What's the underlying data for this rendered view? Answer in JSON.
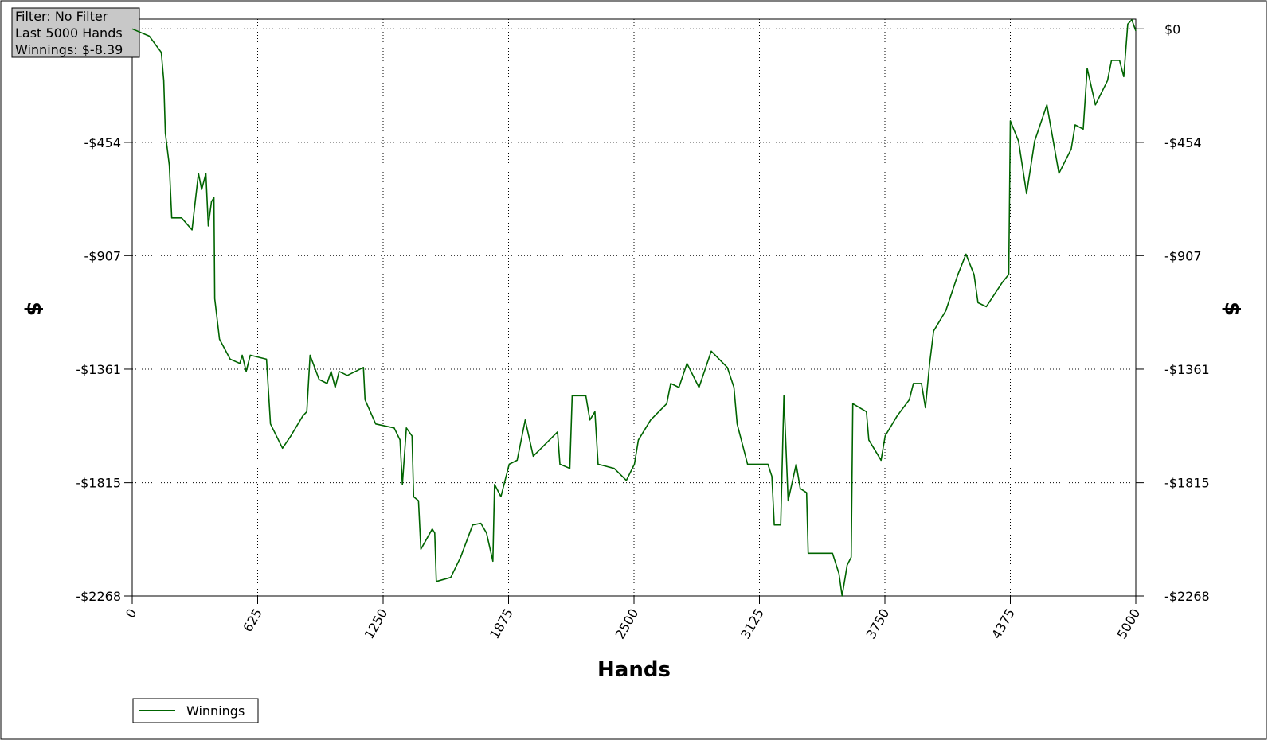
{
  "chart_data": {
    "type": "line",
    "info": [
      "Filter: No Filter",
      "Last  5000 Hands",
      "Winnings: $-8.39"
    ],
    "x_label": "Hands",
    "y_label": "$",
    "x": [
      0,
      85,
      145,
      157,
      165,
      185,
      197,
      246,
      298,
      314,
      330,
      346,
      367,
      379,
      395,
      407,
      411,
      435,
      488,
      536,
      548,
      568,
      588,
      669,
      689,
      749,
      790,
      850,
      870,
      886,
      931,
      971,
      991,
      1011,
      1031,
      1072,
      1152,
      1160,
      1213,
      1305,
      1334,
      1346,
      1366,
      1394,
      1402,
      1426,
      1438,
      1495,
      1507,
      1515,
      1587,
      1636,
      1696,
      1737,
      1765,
      1797,
      1805,
      1837,
      1878,
      1918,
      1958,
      1998,
      2079,
      2119,
      2131,
      2180,
      2192,
      2260,
      2280,
      2305,
      2321,
      2401,
      2462,
      2502,
      2522,
      2583,
      2663,
      2683,
      2724,
      2764,
      2824,
      2885,
      2965,
      2998,
      3014,
      3066,
      3167,
      3187,
      3199,
      3231,
      3247,
      3268,
      3308,
      3328,
      3360,
      3368,
      3489,
      3521,
      3537,
      3562,
      3582,
      3590,
      3658,
      3670,
      3731,
      3751,
      3811,
      3872,
      3892,
      3932,
      3952,
      3973,
      3993,
      4053,
      4114,
      4154,
      4194,
      4214,
      4255,
      4335,
      4367,
      4375,
      4416,
      4456,
      4496,
      4557,
      4617,
      4678,
      4698,
      4738,
      4758,
      4799,
      4859,
      4879,
      4919,
      4940,
      4960,
      4980,
      5000
    ],
    "series": [
      {
        "name": "Winnings",
        "color": "#006400",
        "values": [
          0,
          -29,
          -94,
          -207,
          -417,
          -546,
          -756,
          -756,
          -804,
          -691,
          -578,
          -643,
          -578,
          -788,
          -691,
          -675,
          -1079,
          -1241,
          -1321,
          -1338,
          -1305,
          -1370,
          -1305,
          -1321,
          -1580,
          -1677,
          -1628,
          -1548,
          -1531,
          -1305,
          -1402,
          -1418,
          -1370,
          -1434,
          -1370,
          -1386,
          -1354,
          -1483,
          -1580,
          -1596,
          -1644,
          -1822,
          -1596,
          -1628,
          -1871,
          -1887,
          -2081,
          -2000,
          -2016,
          -2210,
          -2194,
          -2113,
          -1984,
          -1977,
          -2016,
          -2129,
          -1822,
          -1871,
          -1741,
          -1725,
          -1564,
          -1709,
          -1644,
          -1612,
          -1741,
          -1758,
          -1467,
          -1467,
          -1564,
          -1531,
          -1741,
          -1758,
          -1806,
          -1741,
          -1644,
          -1564,
          -1499,
          -1418,
          -1434,
          -1338,
          -1434,
          -1289,
          -1354,
          -1434,
          -1580,
          -1741,
          -1741,
          -1790,
          -1984,
          -1984,
          -1467,
          -1887,
          -1741,
          -1838,
          -1855,
          -2097,
          -2097,
          -2178,
          -2268,
          -2145,
          -2113,
          -1499,
          -1531,
          -1644,
          -1725,
          -1628,
          -1548,
          -1483,
          -1418,
          -1418,
          -1515,
          -1338,
          -1208,
          -1128,
          -982,
          -901,
          -982,
          -1095,
          -1111,
          -1014,
          -982,
          -368,
          -449,
          -659,
          -449,
          -304,
          -578,
          -481,
          -384,
          -401,
          -158,
          -304,
          -207,
          -126,
          -126,
          -191,
          19,
          36,
          -8
        ]
      }
    ],
    "xlim": [
      0,
      5000
    ],
    "xticks": [
      0,
      625,
      1250,
      1875,
      2500,
      3125,
      3750,
      4375,
      5000
    ],
    "ylim": [
      -2268,
      39
    ],
    "yticks": [
      {
        "value": -2268,
        "label": "-$2268"
      },
      {
        "value": -1815,
        "label": "-$1815"
      },
      {
        "value": -1361,
        "label": "-$1361"
      },
      {
        "value": -907,
        "label": "-$907"
      },
      {
        "value": -454,
        "label": "-$454"
      },
      {
        "value": 0,
        "label": "$0"
      }
    ],
    "grid": true
  }
}
